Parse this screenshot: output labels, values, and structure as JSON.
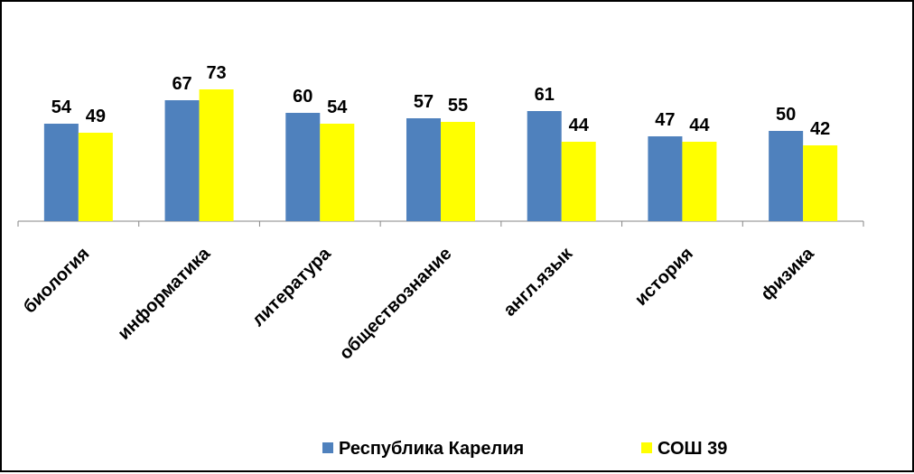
{
  "chart_data": {
    "type": "bar",
    "categories": [
      "биология",
      "информатика",
      "литература",
      "обществознание",
      "англ.язык",
      "история",
      "физика"
    ],
    "series": [
      {
        "name": "Республика Карелия",
        "color": "#4f81bd",
        "values": [
          54,
          67,
          60,
          57,
          61,
          47,
          50
        ]
      },
      {
        "name": "СОШ 39",
        "color": "#ffff00",
        "values": [
          49,
          73,
          54,
          55,
          44,
          44,
          42
        ]
      }
    ],
    "data_labels": true,
    "grid": false,
    "legend_position": "bottom",
    "title": "",
    "xlabel": "",
    "ylabel": ""
  }
}
